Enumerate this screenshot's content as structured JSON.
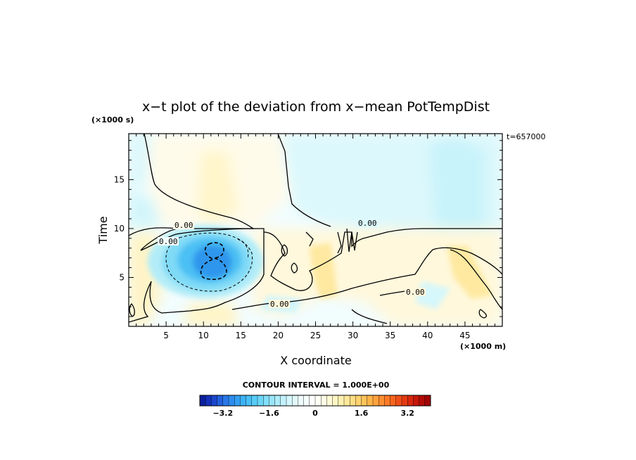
{
  "chart_data": {
    "type": "heatmap",
    "title": "x−t plot of the deviation from x−mean PotTempDist",
    "xlabel": "X coordinate",
    "ylabel": "Time",
    "x_units": "(×1000 m)",
    "y_units": "(×1000 s)",
    "time_stamp": "t=657000",
    "xlim": [
      0,
      50
    ],
    "ylim": [
      0,
      19.7
    ],
    "x_ticks": [
      "5",
      "10",
      "15",
      "20",
      "25",
      "30",
      "35",
      "40",
      "45"
    ],
    "y_ticks": [
      "5",
      "10",
      "15"
    ],
    "contour_interval_text": "CONTOUR INTERVAL = 1.000E+00",
    "contour_labels": [
      "0.00",
      "0.00",
      "0.00",
      "0.00",
      "0.00"
    ],
    "colorbar": {
      "min": -4.0,
      "max": 4.0,
      "step": 0.2,
      "tick_labels": [
        "−3.2",
        "−1.6",
        "0",
        "1.6",
        "3.2"
      ],
      "tick_values": [
        -3.2,
        -1.6,
        0,
        1.6,
        3.2
      ],
      "colors": [
        "#0b1f9e",
        "#1230b8",
        "#1a46cc",
        "#2260dc",
        "#2878e6",
        "#2e8cee",
        "#34a0f2",
        "#3cb2f4",
        "#48c0f6",
        "#58ccf8",
        "#6cd6f8",
        "#82def8",
        "#98e6fa",
        "#aeecfa",
        "#c2f2fc",
        "#d4f6fc",
        "#e2fafd",
        "#eefcfe",
        "#f6fefe",
        "#ffffff",
        "#fffef4",
        "#fffce6",
        "#fffad6",
        "#fff6c4",
        "#fff0b0",
        "#ffe89a",
        "#ffde84",
        "#ffd26e",
        "#ffc45a",
        "#ffb44a",
        "#ffa23c",
        "#ff8e30",
        "#ff7a26",
        "#f8641e",
        "#f04e18",
        "#e43a12",
        "#d6280e",
        "#c6180a",
        "#b40c06",
        "#a00404"
      ]
    },
    "field_features": [
      {
        "kind": "negative-anomaly",
        "x_center": 11,
        "t_center": 7.0,
        "min_value": -2.0
      },
      {
        "kind": "negative-anomaly",
        "x_center": 5,
        "t_center": 16.0,
        "min_value": -0.4
      },
      {
        "kind": "negative-anomaly",
        "x_center": 43,
        "t_center": 15.5,
        "min_value": -0.5
      },
      {
        "kind": "positive-anomaly",
        "x_center": 12,
        "t_center": 16.0,
        "max_value": 0.4
      },
      {
        "kind": "positive-anomaly",
        "x_center": 25,
        "t_center": 6.0,
        "max_value": 1.2
      },
      {
        "kind": "positive-anomaly",
        "x_center": 45,
        "t_center": 6.0,
        "max_value": 1.0
      },
      {
        "kind": "positive-anomaly",
        "x_center": 33,
        "t_center": 7.0,
        "max_value": 0.6
      }
    ]
  }
}
